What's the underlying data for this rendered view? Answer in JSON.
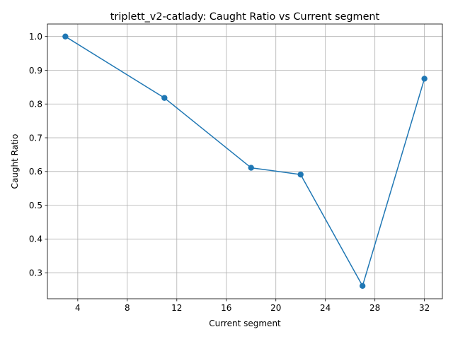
{
  "chart_data": {
    "type": "line",
    "title": "triplett_v2-catlady: Caught Ratio vs Current segment",
    "xlabel": "Current segment",
    "ylabel": "Caught Ratio",
    "x": [
      3,
      11,
      18,
      22,
      27,
      32
    ],
    "series": [
      {
        "values": [
          1.0,
          0.818,
          0.611,
          0.591,
          0.261,
          0.875
        ]
      }
    ],
    "xlim": [
      1.55,
      33.45
    ],
    "ylim": [
      0.223,
      1.037
    ],
    "xticks": [
      4,
      8,
      12,
      16,
      20,
      24,
      28,
      32
    ],
    "xtick_labels": [
      "4",
      "8",
      "12",
      "16",
      "20",
      "24",
      "28",
      "32"
    ],
    "yticks": [
      0.3,
      0.4,
      0.5,
      0.6,
      0.7,
      0.8,
      0.9,
      1.0
    ],
    "ytick_labels": [
      "0.3",
      "0.4",
      "0.5",
      "0.6",
      "0.7",
      "0.8",
      "0.9",
      "1.0"
    ],
    "grid": true,
    "marker": "circle",
    "color": "#1f77b4"
  }
}
